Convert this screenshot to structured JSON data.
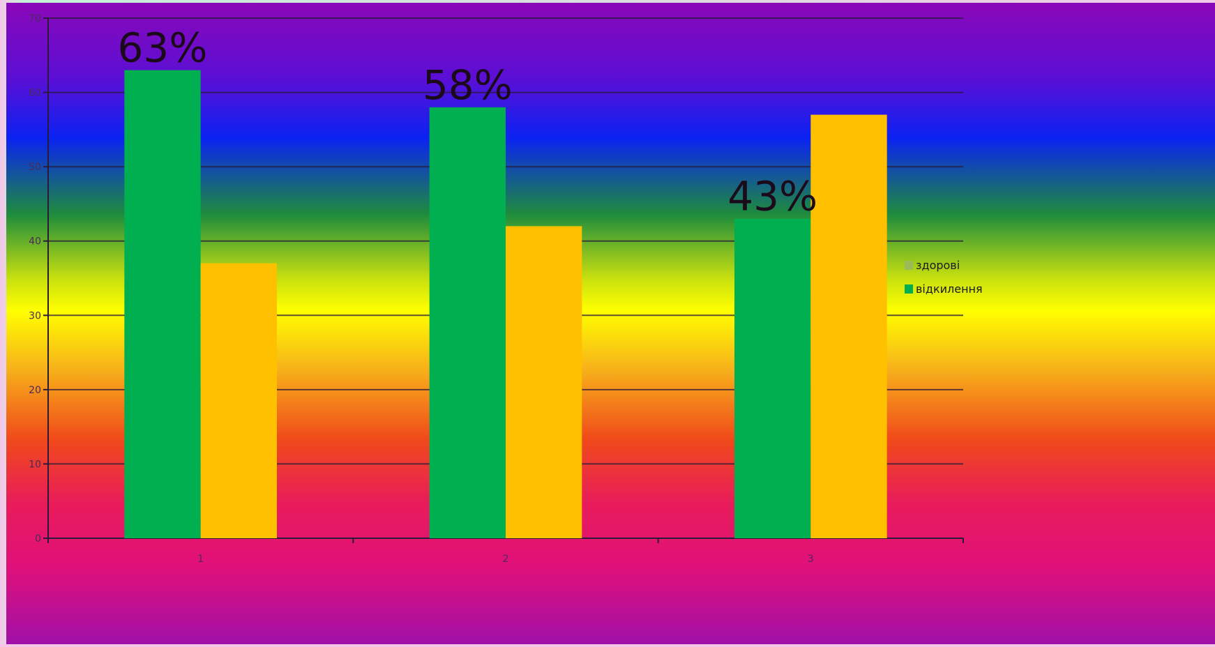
{
  "chart_data": {
    "type": "bar",
    "categories": [
      "1",
      "2",
      "3"
    ],
    "series": [
      {
        "name": "здорові",
        "values": [
          63,
          58,
          43
        ],
        "color": "#00b050"
      },
      {
        "name": "відкилення",
        "values": [
          37,
          42,
          57
        ],
        "color": "#ffc000"
      }
    ],
    "data_labels": [
      "63%",
      "58%",
      "43%"
    ],
    "ylim": [
      0,
      70
    ],
    "yticks": [
      "0",
      "10",
      "20",
      "30",
      "40",
      "50",
      "60",
      "70"
    ],
    "grid": true,
    "legend_position": "right",
    "legend_colors": [
      "#9bbb59",
      "#00b050"
    ]
  },
  "background_gradient": [
    "#8a08b8",
    "#5a0fd6",
    "#0b22f2",
    "#1e8c3c",
    "#c8e00f",
    "#ffff00",
    "#f7b21a",
    "#f04a1a",
    "#e81c5a",
    "#e0107a",
    "#a010a8"
  ]
}
